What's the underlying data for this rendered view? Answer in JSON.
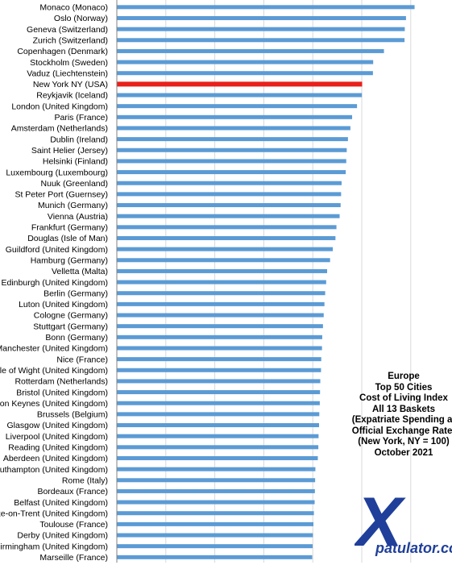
{
  "chart_data": {
    "type": "bar",
    "orientation": "horizontal",
    "title_lines": [
      "Europe",
      "Top 50 Cities",
      "Cost of Living Index",
      "All 13 Baskets",
      "(Expatriate Spending  at",
      "Official Exchange Rate)",
      "(New York, NY = 100)",
      "October 2021"
    ],
    "categories": [
      "Monaco (Monaco)",
      "Oslo (Norway)",
      "Geneva (Switzerland)",
      "Zurich (Switzerland)",
      "Copenhagen (Denmark)",
      "Stockholm (Sweden)",
      "Vaduz (Liechtenstein)",
      "New York NY (USA)",
      "Reykjavik (Iceland)",
      "London (United Kingdom)",
      "Paris (France)",
      "Amsterdam (Netherlands)",
      "Dublin (Ireland)",
      "Saint Helier (Jersey)",
      "Helsinki (Finland)",
      "Luxembourg (Luxembourg)",
      "Nuuk (Greenland)",
      "St Peter Port (Guernsey)",
      "Munich (Germany)",
      "Vienna (Austria)",
      "Frankfurt (Germany)",
      "Douglas (Isle of Man)",
      "Guildford (United Kingdom)",
      "Hamburg (Germany)",
      "Velletta (Malta)",
      "Edinburgh (United Kingdom)",
      "Berlin (Germany)",
      "Luton (United Kingdom)",
      "Cologne (Germany)",
      "Stuttgart (Germany)",
      "Bonn (Germany)",
      "Manchester (United Kingdom)",
      "Nice (France)",
      "Isle of Wight (United Kingdom)",
      "Rotterdam (Netherlands)",
      "Bristol (United Kingdom)",
      "Milton Keynes (United Kingdom)",
      "Brussels (Belgium)",
      "Glasgow (United Kingdom)",
      "Liverpool (United Kingdom)",
      "Reading (United Kingdom)",
      "Aberdeen (United Kingdom)",
      "Southampton (United Kingdom)",
      "Rome (Italy)",
      "Bordeaux (France)",
      "Belfast (United Kingdom)",
      "Stoke-on-Trent (United Kingdom)",
      "Toulouse (France)",
      "Derby (United Kingdom)",
      "Birmingham (United Kingdom)",
      "Marseille (France)"
    ],
    "values": [
      121.4,
      117.9,
      117.4,
      117.3,
      108.9,
      104.5,
      104.4,
      100.0,
      99.9,
      97.9,
      95.9,
      95.2,
      94.2,
      93.7,
      93.5,
      93.3,
      91.6,
      91.4,
      91.2,
      90.8,
      89.5,
      89.1,
      88.0,
      86.9,
      85.7,
      85.3,
      84.9,
      84.6,
      84.3,
      84.0,
      83.7,
      83.6,
      83.3,
      83.2,
      82.9,
      82.8,
      82.7,
      82.5,
      82.4,
      82.2,
      82.1,
      81.9,
      80.9,
      80.8,
      80.7,
      80.6,
      80.3,
      80.1,
      79.9,
      79.8,
      79.6
    ],
    "highlight_category": "New York NY (USA)",
    "xlim": [
      0,
      140
    ],
    "grid": true,
    "colors": {
      "bar": "#5b9bd5",
      "highlight": "#e8211b",
      "grid": "#d9d9d9",
      "axis": "#808080"
    }
  },
  "logo": {
    "letter": "X",
    "text": "patulator.com",
    "color": "#1f3f9a"
  }
}
